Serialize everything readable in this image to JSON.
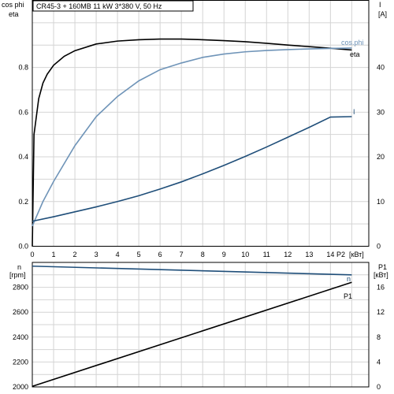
{
  "chart_data": [
    {
      "type": "line",
      "title": "CR45-3 + 160MB   11 kW   3*380 V, 50 Hz",
      "xlabel": "P2",
      "xunit": "[кВт]",
      "xlim": [
        0,
        15
      ],
      "x_ticks": [
        0,
        1,
        2,
        3,
        4,
        5,
        6,
        7,
        8,
        9,
        10,
        11,
        12,
        13,
        14
      ],
      "y_left": {
        "label_line1": "cos phi",
        "label_line2": "eta",
        "lim": [
          0,
          1.0
        ],
        "ticks": [
          "0.0",
          "0.2",
          "0.4",
          "0.6",
          "0.8"
        ],
        "tick_values": [
          0,
          0.2,
          0.4,
          0.6,
          0.8
        ]
      },
      "y_right": {
        "label_line1": "I",
        "label_line2": "[A]",
        "lim": [
          0,
          50
        ],
        "ticks": [
          "0",
          "10",
          "20",
          "30",
          "40"
        ],
        "tick_values": [
          0,
          10,
          20,
          30,
          40
        ]
      },
      "grid": true,
      "series": [
        {
          "name": "eta",
          "axis": "left",
          "color": "#000000",
          "x": [
            0,
            0.08,
            0.3,
            0.5,
            0.7,
            1,
            1.5,
            2,
            3,
            4,
            5,
            6,
            7,
            8,
            9,
            10,
            11,
            12,
            13,
            14,
            15
          ],
          "y": [
            0,
            0.5,
            0.66,
            0.73,
            0.77,
            0.81,
            0.85,
            0.875,
            0.905,
            0.918,
            0.924,
            0.927,
            0.927,
            0.924,
            0.92,
            0.915,
            0.908,
            0.9,
            0.893,
            0.886,
            0.878
          ]
        },
        {
          "name": "cos.phi",
          "axis": "left",
          "color": "#6f94b8",
          "x": [
            0,
            0.5,
            1,
            2,
            3,
            4,
            5,
            6,
            7,
            8,
            9,
            10,
            11,
            12,
            13,
            14,
            15
          ],
          "y": [
            0.09,
            0.2,
            0.29,
            0.45,
            0.58,
            0.67,
            0.74,
            0.79,
            0.82,
            0.845,
            0.86,
            0.87,
            0.876,
            0.88,
            0.883,
            0.885,
            0.887
          ]
        },
        {
          "name": "I",
          "axis": "right",
          "color": "#1f4e79",
          "x": [
            0,
            1,
            2,
            3,
            4,
            5,
            6,
            7,
            8,
            9,
            10,
            11,
            12,
            13,
            14,
            15
          ],
          "y": [
            5.6,
            6.6,
            7.7,
            8.8,
            10.0,
            11.3,
            12.8,
            14.4,
            16.2,
            18.1,
            20.1,
            22.2,
            24.4,
            26.6,
            28.9,
            29.0
          ]
        }
      ]
    },
    {
      "type": "line",
      "xlim": [
        0,
        15
      ],
      "y_left": {
        "label_line1": "n",
        "label_line2": "[rpm]",
        "lim": [
          2000,
          3000
        ],
        "ticks": [
          "2000",
          "2200",
          "2400",
          "2600",
          "2800"
        ],
        "tick_values": [
          2000,
          2200,
          2400,
          2600,
          2800
        ]
      },
      "y_right": {
        "label_line1": "P1",
        "label_line2": "[кВт]",
        "lim": [
          0,
          20
        ],
        "ticks": [
          "0",
          "4",
          "8",
          "12",
          "16"
        ],
        "tick_values": [
          0,
          4,
          8,
          12,
          16
        ]
      },
      "grid": true,
      "series": [
        {
          "name": "n",
          "axis": "left",
          "color": "#1f4e79",
          "x": [
            0,
            15
          ],
          "y": [
            2970,
            2900
          ]
        },
        {
          "name": "P1",
          "axis": "right",
          "color": "#000000",
          "x": [
            0,
            15
          ],
          "y": [
            0.1,
            16.8
          ]
        }
      ]
    }
  ]
}
